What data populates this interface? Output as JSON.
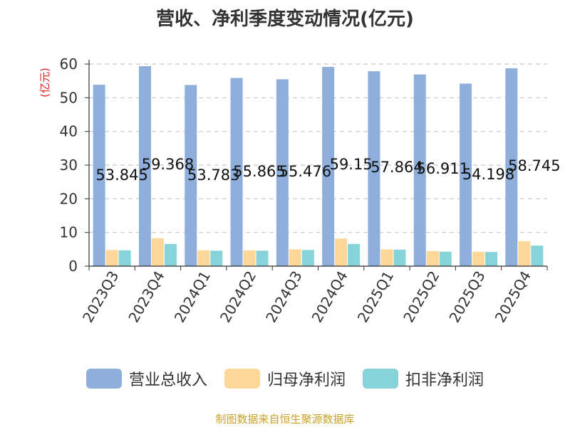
{
  "chart_data": {
    "type": "bar",
    "title": "营收、净利季度变动情况(亿元)",
    "ylabel": "(亿元)",
    "xlabel": "",
    "ylim": [
      0,
      60
    ],
    "yticks": [
      0,
      10,
      20,
      30,
      40,
      50,
      60
    ],
    "grid": true,
    "legend_position": "bottom",
    "categories": [
      "2023Q3",
      "2023Q4",
      "2024Q1",
      "2024Q2",
      "2024Q3",
      "2024Q4",
      "2025Q1",
      "2025Q2",
      "2025Q3",
      "2025Q4"
    ],
    "series": [
      {
        "name": "营业总收入",
        "color": "#8eaedb",
        "values": [
          53.845,
          59.368,
          53.783,
          55.865,
          55.476,
          59.15,
          57.864,
          56.911,
          54.198,
          58.745
        ],
        "labels": [
          "53.845",
          "59.368",
          "53.783",
          "55.865",
          "55.476",
          "59.15",
          "57.864",
          "56.911",
          "54.198",
          "58.745"
        ]
      },
      {
        "name": "归母净利润",
        "color": "#fdd797",
        "values": [
          4.8,
          8.3,
          4.7,
          4.7,
          5.0,
          8.2,
          5.0,
          4.5,
          4.3,
          7.4
        ]
      },
      {
        "name": "扣非净利润",
        "color": "#86d4d9",
        "values": [
          4.7,
          6.6,
          4.6,
          4.6,
          4.8,
          6.6,
          4.9,
          4.3,
          4.2,
          6.1
        ]
      }
    ]
  },
  "footer": {
    "source": "制图数据来自恒生聚源数据库"
  }
}
